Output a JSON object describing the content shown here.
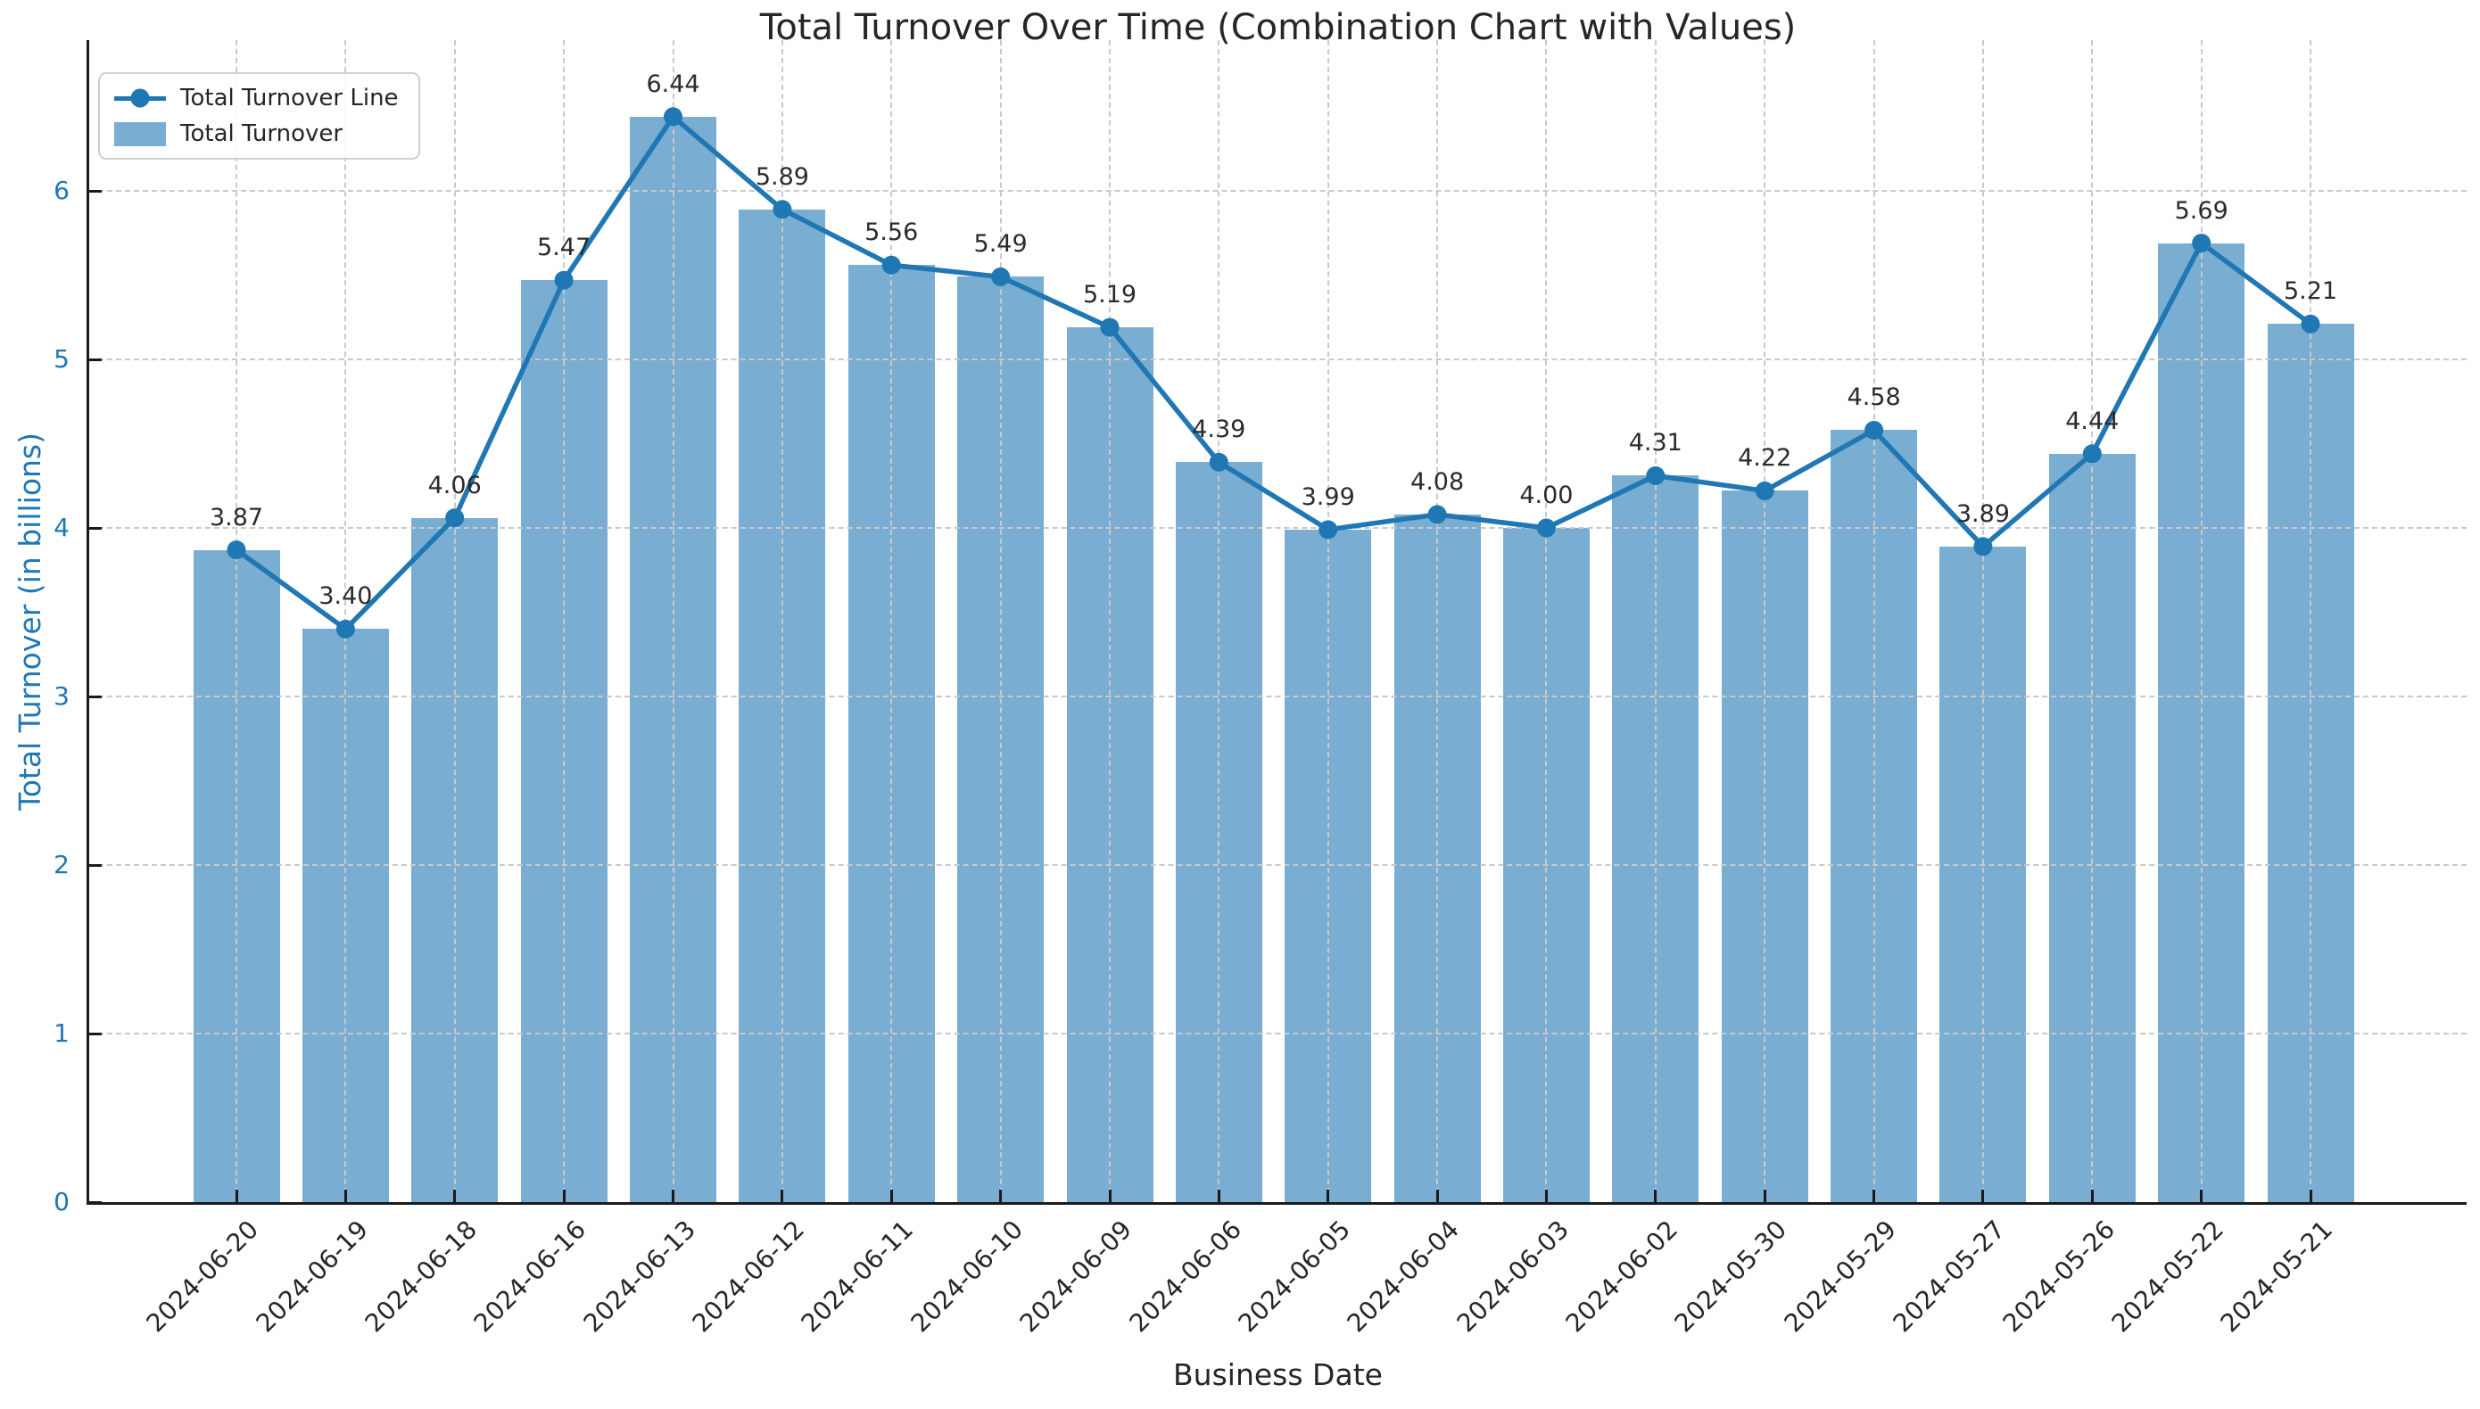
{
  "chart_data": {
    "type": "bar",
    "combo": "bar+line",
    "title": "Total Turnover Over Time (Combination Chart with Values)",
    "xlabel": "Business Date",
    "ylabel": "Total Turnover (in billions)",
    "categories": [
      "2024-06-20",
      "2024-06-19",
      "2024-06-18",
      "2024-06-16",
      "2024-06-13",
      "2024-06-12",
      "2024-06-11",
      "2024-06-10",
      "2024-06-09",
      "2024-06-06",
      "2024-06-05",
      "2024-06-04",
      "2024-06-03",
      "2024-06-02",
      "2024-05-30",
      "2024-05-29",
      "2024-05-27",
      "2024-05-26",
      "2024-05-22",
      "2024-05-21"
    ],
    "values": [
      3.87,
      3.4,
      4.06,
      5.47,
      6.44,
      5.89,
      5.56,
      5.49,
      5.19,
      4.39,
      3.99,
      4.08,
      4.0,
      4.31,
      4.22,
      4.58,
      3.89,
      4.44,
      5.69,
      5.21
    ],
    "value_labels": [
      "3.87",
      "3.40",
      "4.06",
      "5.47",
      "6.44",
      "5.89",
      "5.56",
      "5.49",
      "5.19",
      "4.39",
      "3.99",
      "4.08",
      "4.00",
      "4.31",
      "4.22",
      "4.58",
      "3.89",
      "4.44",
      "5.69",
      "5.21"
    ],
    "series": [
      {
        "name": "Total Turnover Line",
        "type": "line"
      },
      {
        "name": "Total Turnover",
        "type": "bar"
      }
    ],
    "legend_position": "upper-left",
    "grid": "dashed, horizontal and vertical",
    "yticks": [
      0,
      1,
      2,
      3,
      4,
      5,
      6
    ],
    "ylim": [
      0,
      6.9
    ],
    "colors": {
      "bar_fill": "#79add2",
      "line": "#1f77b4",
      "marker": "#1f77b4",
      "y_axis_text": "#1f77b4",
      "x_axis_text": "#262626",
      "title_text": "#262626",
      "grid": "#c9c9c9",
      "spine": "#1a1a1a"
    }
  }
}
